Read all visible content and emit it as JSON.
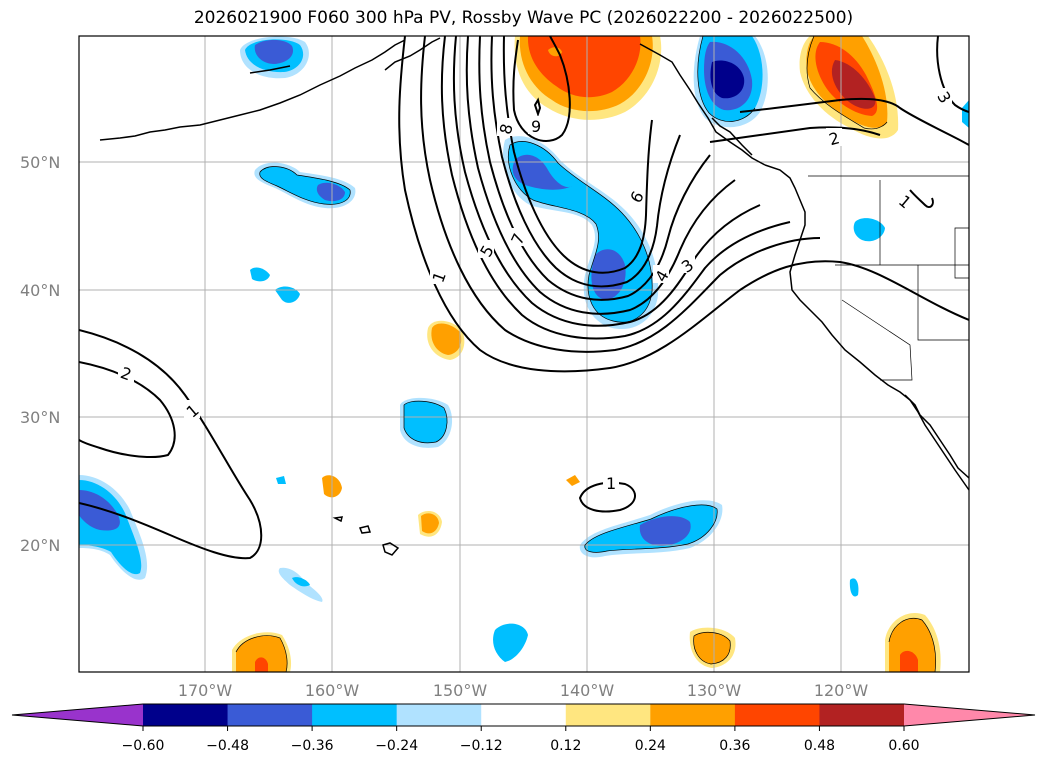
{
  "title": "2026021900 F060 300 hPa PV, Rossby Wave PC (2026022200 - 2026022500)",
  "map": {
    "region": "North Pacific / Western North America",
    "lat_labels": [
      "50°N",
      "40°N",
      "30°N",
      "20°N"
    ],
    "lon_labels": [
      "170°W",
      "160°W",
      "150°W",
      "140°W",
      "130°W",
      "120°W"
    ],
    "contour_labels": [
      "1",
      "2",
      "1",
      "1",
      "2",
      "3",
      "3",
      "4",
      "5",
      "6",
      "7",
      "8",
      "9",
      "1"
    ]
  },
  "colorbar": {
    "ticks": [
      "−0.60",
      "−0.48",
      "−0.36",
      "−0.24",
      "−0.12",
      "0.12",
      "0.24",
      "0.36",
      "0.48",
      "0.60"
    ],
    "colors": [
      "#9933cc",
      "#00008b",
      "#3a5bd6",
      "#00bfff",
      "#b0e2ff",
      "#ffffff",
      "#ffe680",
      "#ffa000",
      "#ff4500",
      "#b22222",
      "#ff88aa"
    ]
  },
  "colors": {
    "frame": "#000000",
    "grid": "#b0b0b0",
    "axis_label": "#808080"
  }
}
